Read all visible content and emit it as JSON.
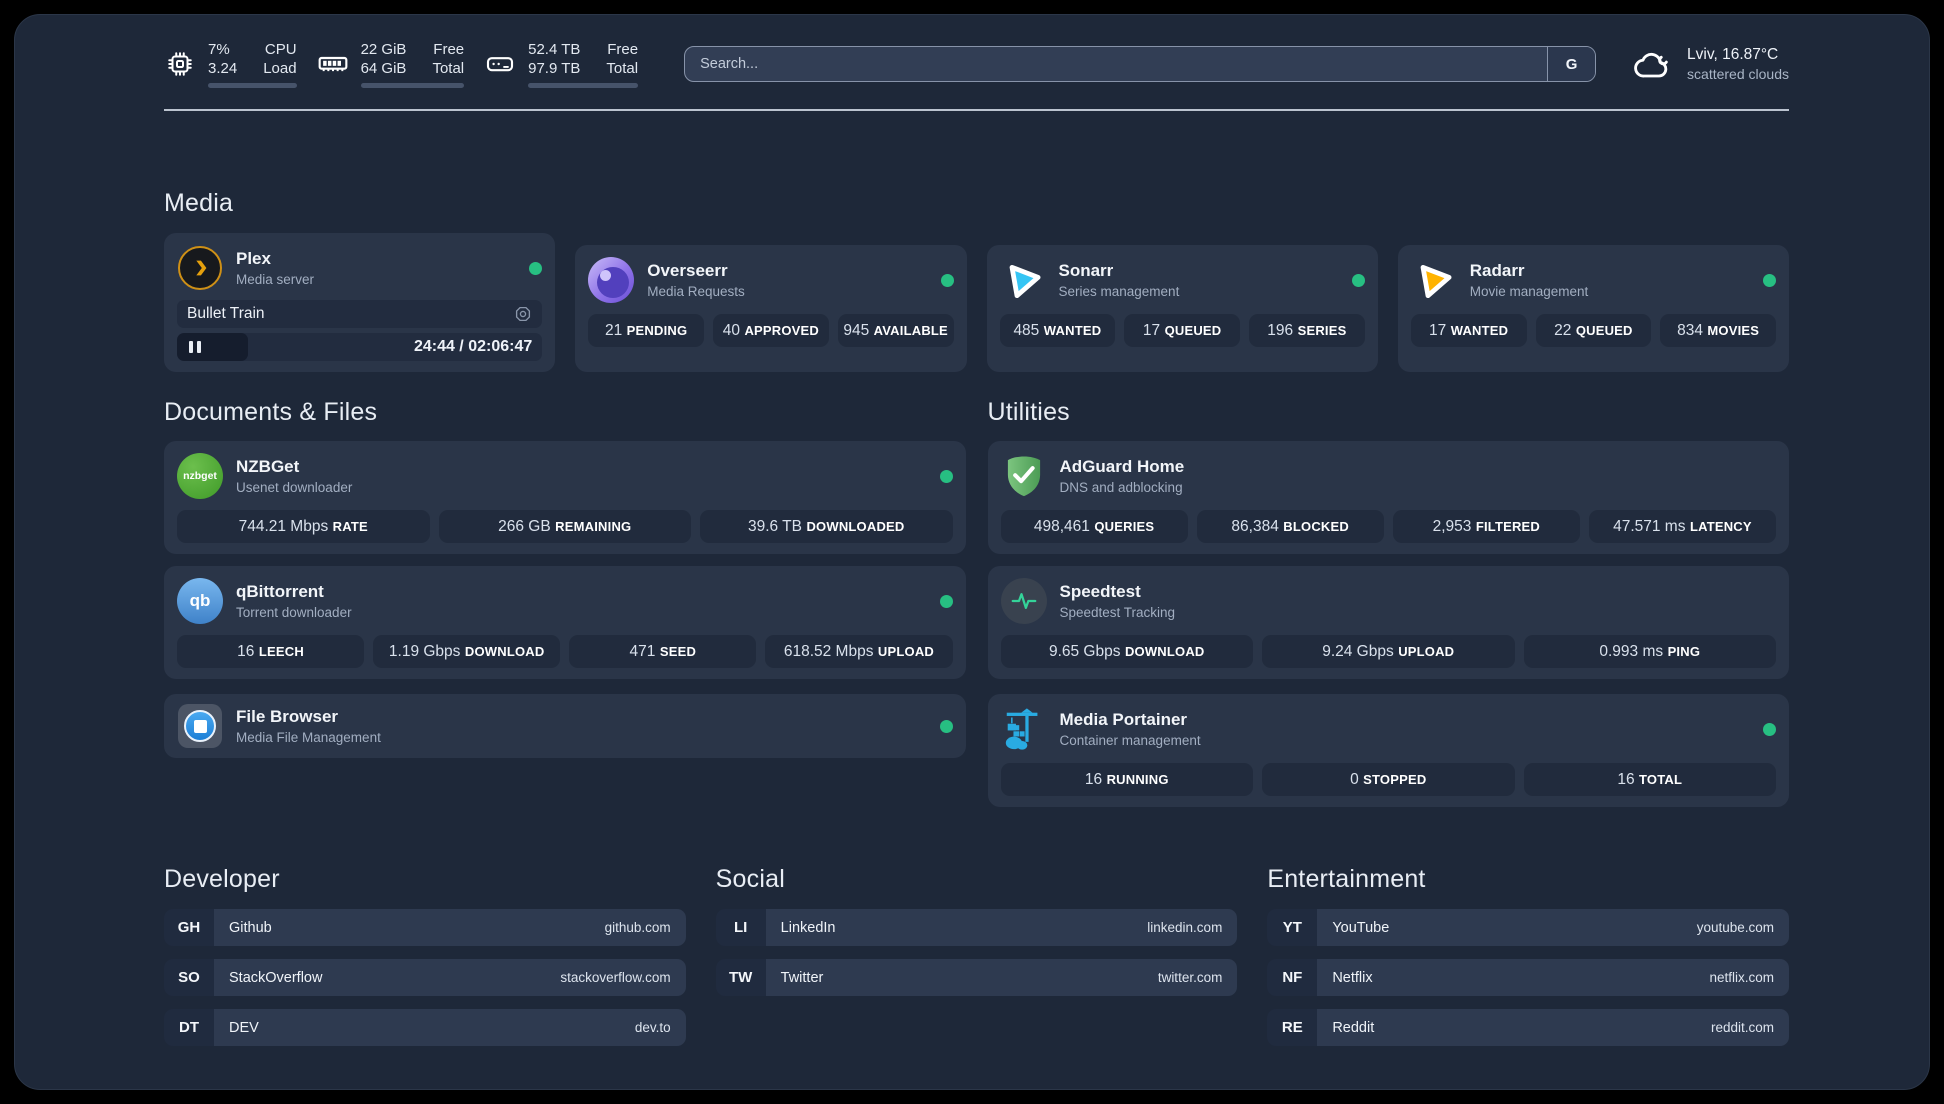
{
  "topbar": {
    "cpu": {
      "icon": "cpu-icon",
      "values": [
        "7%",
        "3.24"
      ],
      "labels": [
        "CPU",
        "Load"
      ],
      "progress": 7
    },
    "memory": {
      "icon": "ram-icon",
      "values": [
        "22 GiB",
        "64 GiB"
      ],
      "labels": [
        "Free",
        "Total"
      ],
      "progress": 66
    },
    "disk": {
      "icon": "disk-icon",
      "values": [
        "52.4 TB",
        "97.9 TB"
      ],
      "labels": [
        "Free",
        "Total"
      ],
      "progress": 47
    },
    "search": {
      "placeholder": "Search...",
      "button_label": "G"
    },
    "weather": {
      "icon": "cloud-icon",
      "line1": "Lviv, 16.87°C",
      "line2": "scattered clouds"
    }
  },
  "colors": {
    "status_online": "#27bf82",
    "plex_gold": "#e5a00d",
    "sonarr_blue": "#35c5f4",
    "radarr_yellow": "#ffb300",
    "adguard_green": "#5fae64",
    "portainer_blue": "#29abe2",
    "nzbget_green": "#54a83a",
    "qbittorrent_blue": "#4a90d9"
  },
  "media": {
    "title": "Media",
    "cards": [
      {
        "icon": "plex-icon",
        "title": "Plex",
        "subtitle": "Media server",
        "online": true,
        "player": {
          "track": "Bullet Train",
          "time": "24:44 / 02:06:47",
          "progress": 19.5
        }
      },
      {
        "icon": "overseerr-icon",
        "title": "Overseerr",
        "subtitle": "Media Requests",
        "online": true,
        "stats": [
          {
            "value": "21",
            "label": "PENDING"
          },
          {
            "value": "40",
            "label": "APPROVED"
          },
          {
            "value": "945",
            "label": "AVAILABLE"
          }
        ]
      },
      {
        "icon": "sonarr-icon",
        "title": "Sonarr",
        "subtitle": "Series management",
        "online": true,
        "stats": [
          {
            "value": "485",
            "label": "WANTED"
          },
          {
            "value": "17",
            "label": "QUEUED"
          },
          {
            "value": "196",
            "label": "SERIES"
          }
        ]
      },
      {
        "icon": "radarr-icon",
        "title": "Radarr",
        "subtitle": "Movie management",
        "online": true,
        "stats": [
          {
            "value": "17",
            "label": "WANTED"
          },
          {
            "value": "22",
            "label": "QUEUED"
          },
          {
            "value": "834",
            "label": "MOVIES"
          }
        ]
      }
    ]
  },
  "documents": {
    "title": "Documents & Files",
    "cards": [
      {
        "icon": "nzbget-icon",
        "title": "NZBGet",
        "subtitle": "Usenet downloader",
        "online": true,
        "stats": [
          {
            "value": "744.21 Mbps",
            "label": "RATE"
          },
          {
            "value": "266 GB",
            "label": "REMAINING"
          },
          {
            "value": "39.6 TB",
            "label": "DOWNLOADED"
          }
        ]
      },
      {
        "icon": "qbittorrent-icon",
        "title": "qBittorrent",
        "subtitle": "Torrent downloader",
        "online": true,
        "stats": [
          {
            "value": "16",
            "label": "LEECH"
          },
          {
            "value": "1.19 Gbps",
            "label": "DOWNLOAD"
          },
          {
            "value": "471",
            "label": "SEED"
          },
          {
            "value": "618.52 Mbps",
            "label": "UPLOAD"
          }
        ]
      },
      {
        "icon": "filebrowser-icon",
        "title": "File Browser",
        "subtitle": "Media File Management",
        "online": true
      }
    ]
  },
  "utilities": {
    "title": "Utilities",
    "cards": [
      {
        "icon": "adguard-icon",
        "title": "AdGuard Home",
        "subtitle": "DNS and adblocking",
        "online": false,
        "stats": [
          {
            "value": "498,461",
            "label": "QUERIES"
          },
          {
            "value": "86,384",
            "label": "BLOCKED"
          },
          {
            "value": "2,953",
            "label": "FILTERED"
          },
          {
            "value": "47.571 ms",
            "label": "LATENCY"
          }
        ]
      },
      {
        "icon": "speedtest-icon",
        "title": "Speedtest",
        "subtitle": "Speedtest Tracking",
        "online": false,
        "stats": [
          {
            "value": "9.65 Gbps",
            "label": "DOWNLOAD"
          },
          {
            "value": "9.24 Gbps",
            "label": "UPLOAD"
          },
          {
            "value": "0.993 ms",
            "label": "PING"
          }
        ]
      },
      {
        "icon": "portainer-icon",
        "title": "Media Portainer",
        "subtitle": "Container management",
        "online": true,
        "stats": [
          {
            "value": "16",
            "label": "RUNNING"
          },
          {
            "value": "0",
            "label": "STOPPED"
          },
          {
            "value": "16",
            "label": "TOTAL"
          }
        ]
      }
    ]
  },
  "bookmarks": [
    {
      "title": "Developer",
      "items": [
        {
          "abbr": "GH",
          "name": "Github",
          "url": "github.com"
        },
        {
          "abbr": "SO",
          "name": "StackOverflow",
          "url": "stackoverflow.com"
        },
        {
          "abbr": "DT",
          "name": "DEV",
          "url": "dev.to"
        }
      ]
    },
    {
      "title": "Social",
      "items": [
        {
          "abbr": "LI",
          "name": "LinkedIn",
          "url": "linkedin.com"
        },
        {
          "abbr": "TW",
          "name": "Twitter",
          "url": "twitter.com"
        }
      ]
    },
    {
      "title": "Entertainment",
      "items": [
        {
          "abbr": "YT",
          "name": "YouTube",
          "url": "youtube.com"
        },
        {
          "abbr": "NF",
          "name": "Netflix",
          "url": "netflix.com"
        },
        {
          "abbr": "RE",
          "name": "Reddit",
          "url": "reddit.com"
        }
      ]
    }
  ]
}
